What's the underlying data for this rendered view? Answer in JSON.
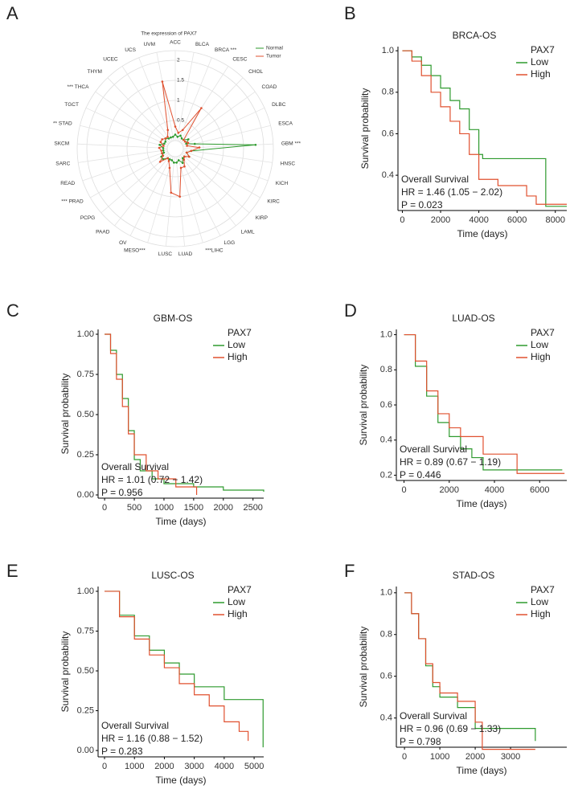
{
  "chart_data": [
    {
      "type": "radar",
      "panel_label": "A",
      "title": "The expression of PAX7",
      "categories": [
        "ACC",
        "BLCA",
        "BRCA ***",
        "CESC",
        "CHOL",
        "COAD",
        "DLBC",
        "ESCA",
        "GBM ***",
        "HNSC",
        "KICH",
        "KIRC",
        "KIRP",
        "LAML",
        "LGG",
        "***LIHC",
        "LUAD",
        "LUSC",
        "MESO***",
        "OV",
        "PAAD",
        "PCPG",
        "*** PRAD",
        "READ",
        "SARC",
        "SKCM",
        "** STAD",
        "TGCT",
        "*** THCA",
        "THYM",
        "UCEC",
        "UCS",
        "UVM"
      ],
      "series": [
        {
          "name": "Normal",
          "color": "#2e9a2e",
          "values": [
            0.15,
            0.1,
            0.15,
            0.1,
            0.1,
            0.2,
            0.1,
            0.3,
            1.8,
            0.2,
            0.1,
            0.2,
            0.1,
            0.1,
            0.2,
            0.1,
            0.15,
            0.15,
            0.1,
            0.1,
            0.1,
            0.2,
            0.2,
            0.1,
            0.1,
            0.1,
            0.2,
            0.1,
            0.1,
            0.15,
            0.1,
            0.1,
            0.1
          ]
        },
        {
          "name": "Tumor",
          "color": "#e0502f",
          "values": [
            0.35,
            0.2,
            0.3,
            1.0,
            0.1,
            0.1,
            0.15,
            0.1,
            0.4,
            0.2,
            0.1,
            0.2,
            0.1,
            0.15,
            0.3,
            0.3,
            1.0,
            0.9,
            0.3,
            0.15,
            0.1,
            0.3,
            0.15,
            0.15,
            0.15,
            0.2,
            0.1,
            0.2,
            0.2,
            0.15,
            0.15,
            0.3,
            1.5
          ]
        }
      ],
      "rlim": [
        0,
        2
      ],
      "rticks": [
        0.5,
        1,
        1.5,
        2
      ]
    },
    {
      "type": "km",
      "panel_label": "B",
      "title": "BRCA-OS",
      "legend_title": "PAX7",
      "x_label": "Time (days)",
      "y_label": "Survival probability",
      "annotations": [
        "Overall Survival",
        "HR = 1.46 (1.05 − 2.02)",
        "P = 0.023"
      ],
      "xlim": [
        -230,
        8600
      ],
      "xticks": [
        0,
        2000,
        4000,
        6000,
        8000
      ],
      "ylim": [
        0.23,
        1.02
      ],
      "yticks": [
        0.4,
        0.6,
        0.8,
        {
          "value": 1,
          "label": "1.0"
        }
      ],
      "series": [
        {
          "name": "Low",
          "color": "#2e9a2e",
          "x": [
            0,
            500,
            1000,
            1500,
            2000,
            2500,
            3000,
            3500,
            4000,
            4200,
            7500,
            7500,
            8600
          ],
          "values": [
            1,
            0.97,
            0.93,
            0.88,
            0.82,
            0.76,
            0.72,
            0.62,
            0.5,
            0.48,
            0.48,
            0.25,
            0.25
          ]
        },
        {
          "name": "High",
          "color": "#e0502f",
          "x": [
            0,
            500,
            1000,
            1500,
            2000,
            2500,
            3000,
            3500,
            4000,
            5000,
            6500,
            7000,
            8600
          ],
          "values": [
            1,
            0.95,
            0.88,
            0.8,
            0.73,
            0.66,
            0.6,
            0.5,
            0.38,
            0.35,
            0.3,
            0.26,
            0.26
          ]
        }
      ]
    },
    {
      "type": "km",
      "panel_label": "C",
      "title": "GBM-OS",
      "legend_title": "PAX7",
      "x_label": "Time (days)",
      "y_label": "Survival probability",
      "annotations": [
        "Overall Survival",
        "HR = 1.01 (0.72 − 1.42)",
        "P = 0.956"
      ],
      "xlim": [
        -110,
        2680
      ],
      "xticks": [
        0,
        500,
        1000,
        1500,
        2000,
        2500
      ],
      "ylim": [
        -0.02,
        1.03
      ],
      "yticks": [
        {
          "value": 0,
          "label": "0.00"
        },
        {
          "value": 0.25,
          "label": "0.25"
        },
        {
          "value": 0.5,
          "label": "0.50"
        },
        {
          "value": 0.75,
          "label": "0.75"
        },
        {
          "value": 1,
          "label": "1.00"
        }
      ],
      "series": [
        {
          "name": "Low",
          "color": "#2e9a2e",
          "x": [
            0,
            100,
            200,
            300,
            400,
            500,
            600,
            800,
            1000,
            1500,
            2000,
            2680
          ],
          "values": [
            1,
            0.9,
            0.75,
            0.6,
            0.4,
            0.22,
            0.15,
            0.1,
            0.07,
            0.05,
            0.03,
            0.02
          ]
        },
        {
          "name": "High",
          "color": "#e0502f",
          "x": [
            0,
            100,
            200,
            300,
            400,
            500,
            700,
            900,
            1200,
            1550
          ],
          "values": [
            1,
            0.88,
            0.72,
            0.55,
            0.38,
            0.25,
            0.15,
            0.1,
            0.05,
            0
          ]
        }
      ]
    },
    {
      "type": "km",
      "panel_label": "D",
      "title": "LUAD-OS",
      "legend_title": "PAX7",
      "x_label": "Time (days)",
      "y_label": "Survival probability",
      "annotations": [
        "Overall Survival",
        "HR = 0.89 (0.67 − 1.19)",
        "P = 0.446"
      ],
      "xlim": [
        -340,
        7200
      ],
      "xticks": [
        0,
        2000,
        4000,
        6000
      ],
      "ylim": [
        0.17,
        1.03
      ],
      "yticks": [
        0.2,
        0.4,
        0.6,
        0.8,
        {
          "value": 1,
          "label": "1.0"
        }
      ],
      "series": [
        {
          "name": "Low",
          "color": "#2e9a2e",
          "x": [
            0,
            500,
            1000,
            1500,
            2000,
            2500,
            3000,
            3500,
            7000
          ],
          "values": [
            1,
            0.82,
            0.65,
            0.5,
            0.42,
            0.35,
            0.3,
            0.23,
            0.23
          ]
        },
        {
          "name": "High",
          "color": "#e0502f",
          "x": [
            0,
            500,
            1000,
            1500,
            2000,
            2500,
            3500,
            4900,
            5000,
            7100
          ],
          "values": [
            1,
            0.85,
            0.68,
            0.55,
            0.47,
            0.42,
            0.32,
            0.32,
            0.21,
            0.21
          ]
        }
      ]
    },
    {
      "type": "km",
      "panel_label": "E",
      "title": "LUSC-OS",
      "legend_title": "PAX7",
      "x_label": "Time (days)",
      "y_label": "Survival probability",
      "annotations": [
        "Overall Survival",
        "HR = 1.16 (0.88 − 1.52)",
        "P = 0.283"
      ],
      "xlim": [
        -215,
        5320
      ],
      "xticks": [
        0,
        1000,
        2000,
        3000,
        4000,
        5000
      ],
      "ylim": [
        -0.04,
        1.03
      ],
      "yticks": [
        {
          "value": 0,
          "label": "0.00"
        },
        {
          "value": 0.25,
          "label": "0.25"
        },
        {
          "value": 0.5,
          "label": "0.50"
        },
        {
          "value": 0.75,
          "label": "0.75"
        },
        {
          "value": 1,
          "label": "1.00"
        }
      ],
      "series": [
        {
          "name": "Low",
          "color": "#2e9a2e",
          "x": [
            0,
            500,
            1000,
            1500,
            2000,
            2500,
            3000,
            4000,
            5200,
            5300
          ],
          "values": [
            1,
            0.85,
            0.72,
            0.63,
            0.55,
            0.48,
            0.4,
            0.32,
            0.32,
            0.02
          ]
        },
        {
          "name": "High",
          "color": "#e0502f",
          "x": [
            0,
            500,
            1000,
            1500,
            2000,
            2500,
            3000,
            3500,
            4000,
            4500,
            4800
          ],
          "values": [
            1,
            0.84,
            0.7,
            0.6,
            0.52,
            0.42,
            0.35,
            0.28,
            0.18,
            0.12,
            0.06
          ]
        }
      ]
    },
    {
      "type": "km",
      "panel_label": "F",
      "title": "STAD-OS",
      "legend_title": "PAX7",
      "x_label": "Time (days)",
      "y_label": "Survival probability",
      "annotations": [
        "Overall Survival",
        "HR = 0.96 (0.69 − 1.33)",
        "P = 0.798"
      ],
      "xlim": [
        -230,
        4590
      ],
      "xticks": [
        0,
        1000,
        2000,
        3000
      ],
      "ylim": [
        0.26,
        1.03
      ],
      "yticks": [
        0.4,
        0.6,
        0.8,
        {
          "value": 1,
          "label": "1.0"
        }
      ],
      "series": [
        {
          "name": "Low",
          "color": "#2e9a2e",
          "x": [
            0,
            200,
            400,
            600,
            800,
            1000,
            1500,
            2000,
            3700
          ],
          "values": [
            1,
            0.9,
            0.78,
            0.65,
            0.55,
            0.5,
            0.45,
            0.35,
            0.29
          ]
        },
        {
          "name": "High",
          "color": "#e0502f",
          "x": [
            0,
            200,
            400,
            600,
            800,
            1000,
            1500,
            2000,
            2200,
            3700
          ],
          "values": [
            1,
            0.9,
            0.78,
            0.66,
            0.57,
            0.52,
            0.48,
            0.38,
            0.25,
            0.25
          ]
        }
      ]
    }
  ]
}
